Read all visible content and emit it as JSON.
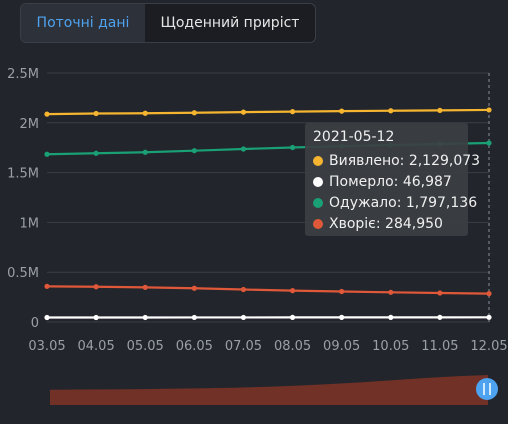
{
  "tabs": {
    "current": "Поточні дані",
    "daily": "Щоденний приріст"
  },
  "chart_data": {
    "type": "line",
    "x": [
      "03.05",
      "04.05",
      "05.05",
      "06.05",
      "07.05",
      "08.05",
      "09.05",
      "10.05",
      "11.05",
      "12.05"
    ],
    "y_ticks": [
      "0",
      "0.5M",
      "1M",
      "1.5M",
      "2M",
      "2.5M"
    ],
    "ylim": [
      0,
      2500000
    ],
    "grid": true,
    "series": [
      {
        "name": "Виявлено",
        "color": "#f5b531",
        "values": [
          2087000,
          2093000,
          2096000,
          2101000,
          2107000,
          2112000,
          2117000,
          2121000,
          2125000,
          2129073
        ]
      },
      {
        "name": "Померло",
        "color": "#ffffff",
        "values": [
          45000,
          45300,
          45500,
          45700,
          45900,
          46100,
          46300,
          46500,
          46800,
          46987
        ]
      },
      {
        "name": "Одужало",
        "color": "#1aa075",
        "values": [
          1684000,
          1694000,
          1704000,
          1720000,
          1737000,
          1752000,
          1765000,
          1777000,
          1787000,
          1797136
        ]
      },
      {
        "name": "Хворіє",
        "color": "#e0583a",
        "values": [
          358000,
          354000,
          348000,
          339000,
          326000,
          315000,
          306000,
          298000,
          291000,
          284950
        ]
      }
    ],
    "tooltip": {
      "date": "2021-05-12",
      "rows": [
        {
          "label": "Виявлено: 2,129,073",
          "color": "#f5b531"
        },
        {
          "label": "Померло: 46,987",
          "color": "#ffffff"
        },
        {
          "label": "Одужало: 1,797,136",
          "color": "#1aa075"
        },
        {
          "label": "Хворіє: 284,950",
          "color": "#e0583a"
        }
      ]
    },
    "minimap": {
      "values": [
        310000,
        315000,
        320000,
        330000,
        345000,
        360000,
        380000,
        410000,
        450000,
        500000,
        560000,
        630000,
        700000,
        760000,
        800000
      ]
    }
  },
  "colors": {
    "grid": "#3a3e46",
    "axis_text": "#9aa0a8",
    "handle": "#4ea3f0",
    "minimap_fill": "#7a3326"
  }
}
